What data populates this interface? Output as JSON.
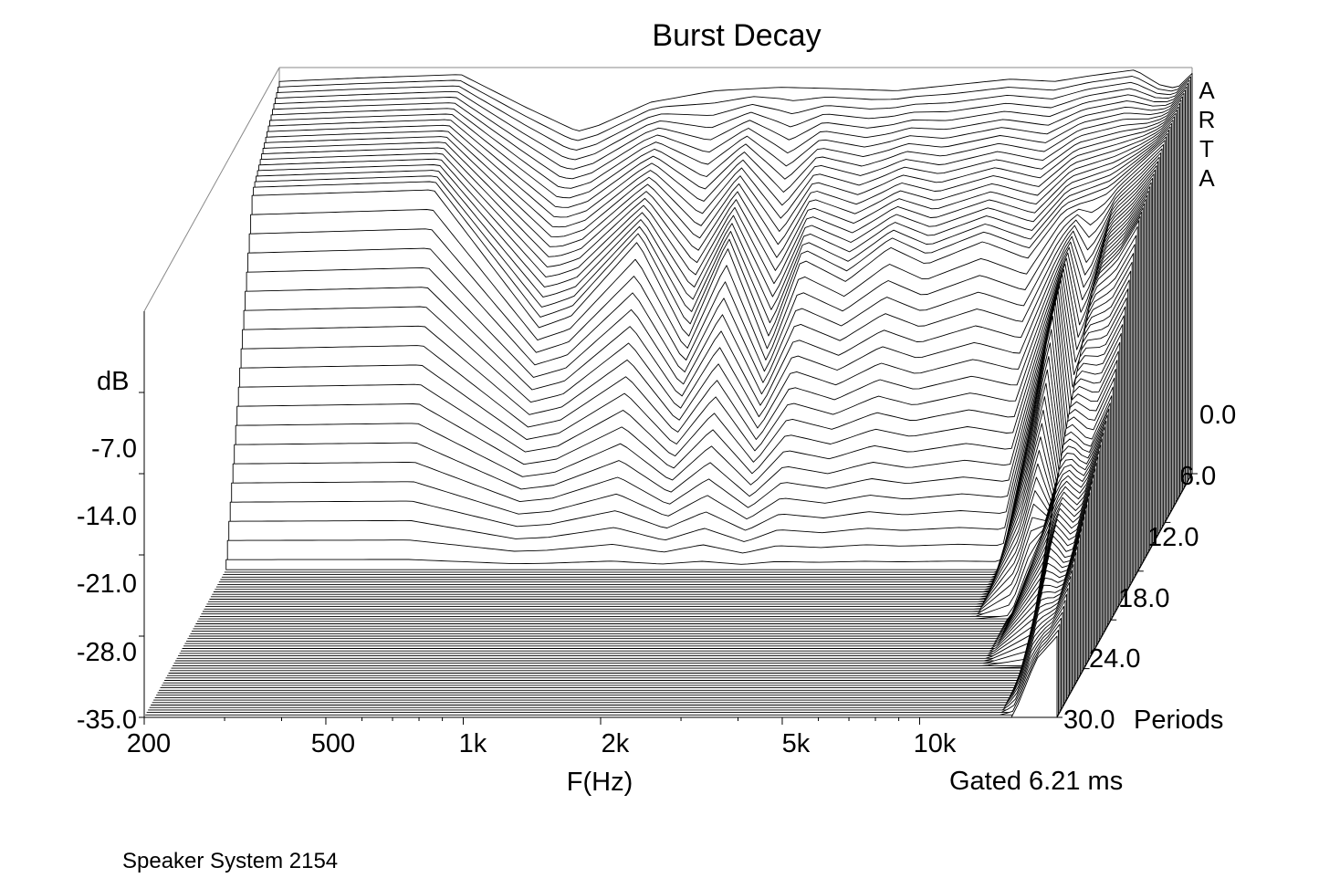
{
  "chart_data": {
    "type": "waterfall",
    "title": "Burst Decay",
    "xlabel": "F(Hz)",
    "ylabel": "dB",
    "zlabel": "Periods",
    "x_scale": "log",
    "xlim": [
      200,
      20000
    ],
    "ylim": [
      -35.0,
      0.0
    ],
    "zlim": [
      0.0,
      30.0
    ],
    "x_ticks": [
      {
        "value": 200,
        "label": "200"
      },
      {
        "value": 500,
        "label": "500"
      },
      {
        "value": 1000,
        "label": "1k"
      },
      {
        "value": 2000,
        "label": "2k"
      },
      {
        "value": 5000,
        "label": "5k"
      },
      {
        "value": 10000,
        "label": "10k"
      }
    ],
    "y_ticks": [
      "-7.0",
      "-14.0",
      "-21.0",
      "-28.0",
      "-35.0"
    ],
    "y_tick_values": [
      -7.0,
      -14.0,
      -21.0,
      -28.0,
      -35.0
    ],
    "z_ticks": [
      "0.0",
      "6.0",
      "12.0",
      "18.0",
      "24.0",
      "30.0"
    ],
    "z_tick_values": [
      0.0,
      6.0,
      12.0,
      18.0,
      24.0,
      30.0
    ],
    "z_unit_label": "Periods",
    "gate_note": "Gated 6.21 ms",
    "software_mark": [
      "A",
      "R",
      "T",
      "A"
    ],
    "footer_note": "Speaker System 2154",
    "grid": false,
    "slice_count": 100,
    "series": [
      {
        "periods": 0.0,
        "db_at": [
          [
            200,
            -1.2
          ],
          [
            300,
            -0.9
          ],
          [
            500,
            -0.6
          ],
          [
            700,
            -3.5
          ],
          [
            900,
            -5.5
          ],
          [
            1000,
            -5.0
          ],
          [
            1300,
            -3.0
          ],
          [
            1800,
            -2.0
          ],
          [
            2500,
            -1.7
          ],
          [
            3200,
            -1.8
          ],
          [
            4500,
            -2.0
          ],
          [
            6000,
            -1.5
          ],
          [
            8000,
            -1.0
          ],
          [
            10000,
            -1.2
          ],
          [
            12000,
            -0.7
          ],
          [
            15000,
            -0.2
          ],
          [
            17000,
            -1.5
          ],
          [
            18500,
            -1.8
          ],
          [
            20000,
            -0.5
          ]
        ]
      },
      {
        "periods": 6.0,
        "db_at": [
          [
            200,
            -6.5
          ],
          [
            500,
            -6.0
          ],
          [
            850,
            -18.0
          ],
          [
            1000,
            -17.0
          ],
          [
            1400,
            -10.5
          ],
          [
            1800,
            -19.0
          ],
          [
            2200,
            -11.0
          ],
          [
            2700,
            -20.0
          ],
          [
            3200,
            -12.0
          ],
          [
            4000,
            -14.0
          ],
          [
            5000,
            -11.0
          ],
          [
            6000,
            -12.5
          ],
          [
            8000,
            -10.5
          ],
          [
            10000,
            -12.0
          ],
          [
            12000,
            -8.0
          ],
          [
            15000,
            -6.5
          ],
          [
            20000,
            -2.0
          ]
        ]
      },
      {
        "periods": 12.0,
        "db_at": [
          [
            200,
            -35.0
          ],
          [
            10000,
            -35.0
          ],
          [
            12000,
            -20.0
          ],
          [
            13000,
            -12.0
          ],
          [
            14000,
            -25.0
          ],
          [
            16000,
            -10.0
          ],
          [
            18000,
            -8.0
          ],
          [
            20000,
            -5.0
          ]
        ]
      },
      {
        "periods": 18.0,
        "db_at": [
          [
            200,
            -35.0
          ],
          [
            12000,
            -35.0
          ],
          [
            15000,
            -25.0
          ],
          [
            16000,
            -18.0
          ],
          [
            18000,
            -20.0
          ],
          [
            20000,
            -16.0
          ]
        ]
      },
      {
        "periods": 24.0,
        "db_at": [
          [
            200,
            -35.0
          ],
          [
            15000,
            -35.0
          ],
          [
            16000,
            -28.0
          ],
          [
            17000,
            -24.0
          ],
          [
            18500,
            -26.0
          ],
          [
            20000,
            -22.0
          ]
        ]
      },
      {
        "periods": 30.0,
        "db_at": [
          [
            200,
            -35.0
          ],
          [
            16000,
            -35.0
          ],
          [
            18000,
            -30.0
          ],
          [
            20000,
            -28.0
          ]
        ]
      }
    ]
  }
}
